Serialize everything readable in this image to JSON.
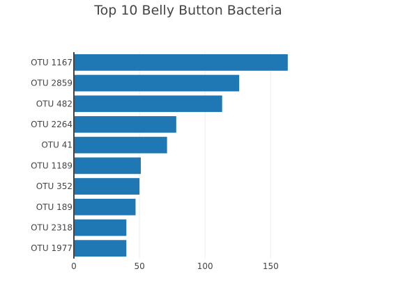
{
  "chart_data": {
    "type": "bar",
    "orientation": "horizontal",
    "title": "Top 10 Belly Button Bacteria",
    "xlabel": "",
    "ylabel": "",
    "categories": [
      "OTU 1167",
      "OTU 2859",
      "OTU 482",
      "OTU 2264",
      "OTU 41",
      "OTU 1189",
      "OTU 352",
      "OTU 189",
      "OTU 2318",
      "OTU 1977"
    ],
    "values": [
      163,
      126,
      113,
      78,
      71,
      51,
      50,
      47,
      40,
      40
    ],
    "xlim": [
      0,
      170
    ],
    "xticks": [
      0,
      50,
      100,
      150
    ],
    "grid": true,
    "bar_color": "#1f77b4",
    "grid_color": "#eeeeee",
    "axis_color": "#444444"
  }
}
